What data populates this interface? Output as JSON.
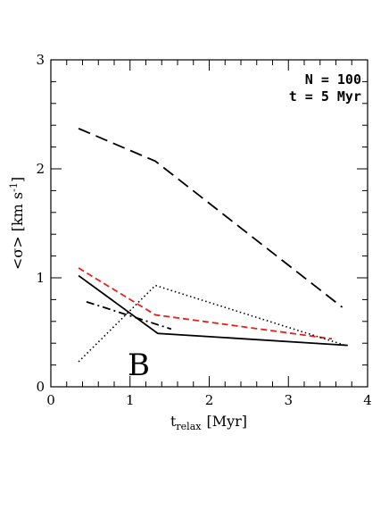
{
  "chart_data": {
    "type": "line",
    "xlabel_main": "t",
    "xlabel_sub": "relax",
    "xlabel_unit": "[Myr]",
    "ylabel": "<σ> [km s",
    "ylabel_sup": "-1",
    "ylabel_close": "]",
    "xlim": [
      0,
      4
    ],
    "ylim": [
      0,
      3
    ],
    "x_ticks": [
      0,
      1,
      2,
      3,
      4
    ],
    "y_ticks": [
      0,
      1,
      2,
      3
    ],
    "annotations": [
      "N = 100",
      "t = 5 Myr"
    ],
    "panel_label": "B",
    "series": [
      {
        "style": "long-dash",
        "color": "#000000",
        "points": [
          [
            0.35,
            2.37
          ],
          [
            1.32,
            2.07
          ],
          [
            3.68,
            0.73
          ]
        ]
      },
      {
        "style": "dashed",
        "color": "#e8201a",
        "points": [
          [
            0.35,
            1.09
          ],
          [
            1.32,
            0.66
          ],
          [
            3.55,
            0.44
          ]
        ]
      },
      {
        "style": "solid",
        "color": "#000000",
        "points": [
          [
            0.35,
            1.02
          ],
          [
            1.35,
            0.49
          ],
          [
            3.75,
            0.38
          ]
        ]
      },
      {
        "style": "dotted",
        "color": "#000000",
        "points": [
          [
            0.35,
            0.23
          ],
          [
            1.32,
            0.93
          ],
          [
            3.72,
            0.38
          ]
        ]
      },
      {
        "style": "dash-dot",
        "color": "#000000",
        "points": [
          [
            0.45,
            0.78
          ],
          [
            1.52,
            0.53
          ]
        ]
      }
    ]
  }
}
